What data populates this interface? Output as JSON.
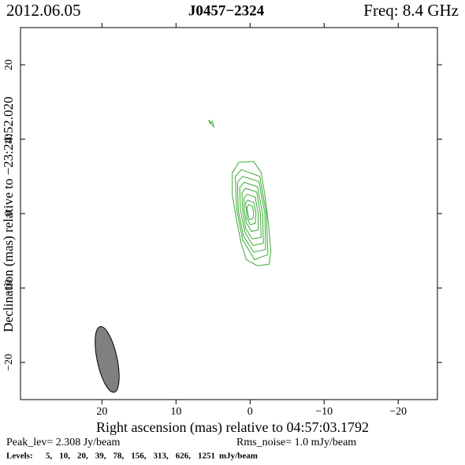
{
  "chart_data": {
    "type": "contour",
    "date": "2012.06.05",
    "title": "J0457−2324",
    "frequency": "Freq: 8.4 GHz",
    "x_label": "Right ascension (mas) relative to 04:57:03.1792",
    "y_label": "Declination (mas) relative to −23:24:52.020",
    "peak": "Peak_lev=  2.308 Jy/beam",
    "rms": "Rms_noise=  1.0 mJy/beam",
    "levels_title": "Levels:",
    "levels": [
      5,
      10,
      20,
      39,
      78,
      156,
      313,
      626,
      1251
    ],
    "levels_value_labels": [
      "5,",
      "10,",
      "20,",
      "39,",
      "78,",
      "156,",
      "313,",
      "626,",
      "1251"
    ],
    "levels_unit": "mJy/beam",
    "color": "#3aaa35",
    "accent_color": "#3aaa35",
    "beam_color": "#808080",
    "xlim": [
      31,
      -25.3
    ],
    "ylim": [
      -25,
      25
    ],
    "xticks": [
      20,
      10,
      0,
      {
        "value": -10,
        "label": "−10"
      },
      {
        "value": -20,
        "label": "−20"
      }
    ],
    "yticks": [
      {
        "value": -20,
        "label": "−20"
      },
      {
        "value": -10,
        "label": "−10"
      },
      0,
      10,
      20
    ],
    "beam": {
      "x": 19.3,
      "y": -19.6,
      "major": 9.0,
      "minor": 2.7,
      "angle": -12
    },
    "contours": [
      {
        "x": [
          1.5,
          -0.5,
          -1.5,
          -2.0,
          -2.5,
          -2.8,
          -2.6,
          -1.0,
          0.5,
          1.2,
          1.8,
          2.4,
          2.4
        ],
        "y": [
          6.9,
          7.0,
          5.5,
          2.5,
          -1.5,
          -5.0,
          -6.8,
          -7.0,
          -6.2,
          -4.0,
          -1.0,
          2.5,
          5.5
        ]
      },
      {
        "x": [
          1.2,
          -1.3,
          -2.2,
          -2.4,
          -0.6,
          1.0,
          1.8,
          2.0
        ],
        "y": [
          5.9,
          5.0,
          0,
          -5.5,
          -6.2,
          -3.5,
          0.5,
          5.0
        ]
      },
      {
        "x": [
          1.0,
          -1.2,
          -2.0,
          -2.1,
          -0.5,
          0.9,
          1.6,
          1.7
        ],
        "y": [
          5.0,
          4.3,
          0,
          -4.8,
          -5.2,
          -3.0,
          0.5,
          4.2
        ]
      },
      {
        "x": [
          0.8,
          -1.0,
          -1.7,
          -1.8,
          -0.4,
          0.7,
          1.3,
          1.4
        ],
        "y": [
          4.2,
          3.6,
          0,
          -4.0,
          -4.3,
          -2.5,
          0.5,
          3.5
        ]
      },
      {
        "x": [
          0.6,
          -0.9,
          -1.4,
          -1.5,
          -0.3,
          0.6,
          1.0,
          1.1
        ],
        "y": [
          3.4,
          2.9,
          0,
          -3.2,
          -3.4,
          -2.0,
          0.5,
          2.8
        ]
      },
      {
        "x": [
          0.4,
          -0.7,
          -1.1,
          -1.1,
          -0.2,
          0.5,
          0.8,
          0.8
        ],
        "y": [
          2.6,
          2.2,
          0,
          -2.2,
          -2.4,
          -1.2,
          0.5,
          2.1
        ]
      },
      {
        "x": [
          0.3,
          -0.5,
          -0.8,
          -0.7,
          0,
          0.4,
          0.5,
          0.6
        ],
        "y": [
          1.8,
          1.5,
          0,
          -1.3,
          -1.5,
          -0.6,
          0.5,
          1.4
        ]
      },
      {
        "x": [
          0.2,
          -0.3,
          -0.5,
          -0.4,
          0.1,
          0.3,
          0.4
        ],
        "y": [
          1.2,
          1.0,
          0.1,
          -0.7,
          -0.8,
          0,
          0.8
        ]
      },
      {
        "x": [
          5.6,
          5.2,
          4.9,
          5.1,
          5.4
        ],
        "y": [
          12.6,
          12.0,
          11.7,
          12.4,
          12.1
        ]
      }
    ]
  }
}
